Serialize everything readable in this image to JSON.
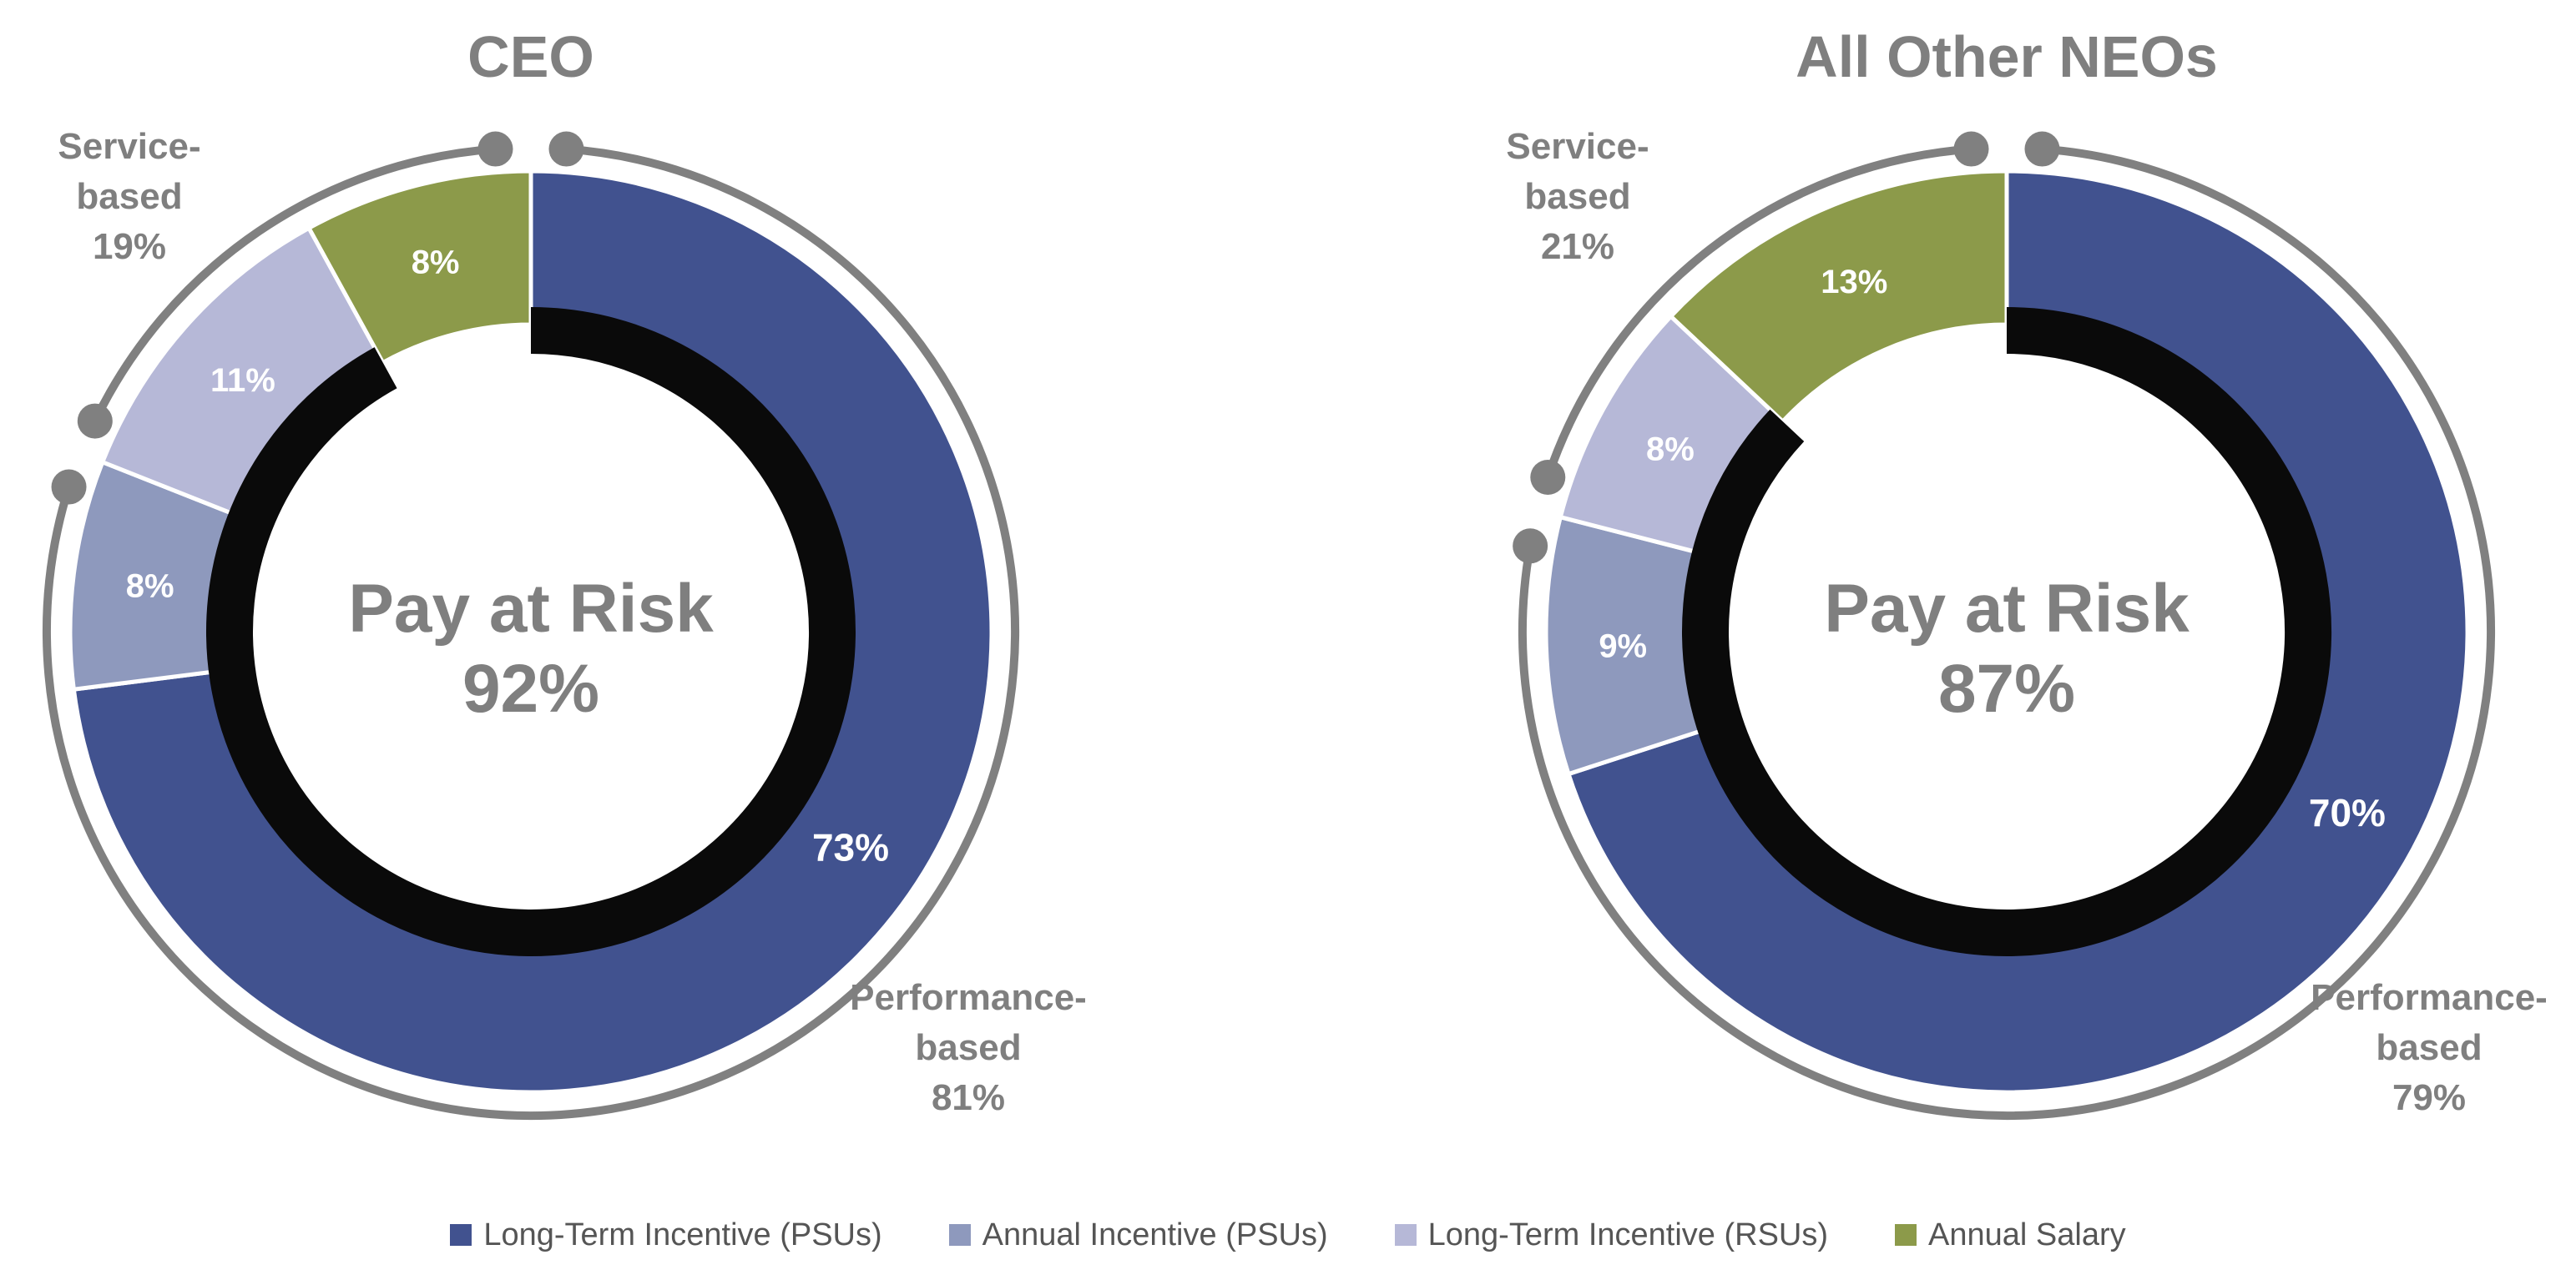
{
  "colors": {
    "ring": "#808080",
    "label_text": "#7f7f7f",
    "slice_text": "#ffffff",
    "inner_ring": "#0a0a0a"
  },
  "chart_data": [
    {
      "type": "donut",
      "title": "CEO",
      "center_label": "Pay at Risk",
      "center_value": "92%",
      "slices": [
        {
          "name": "Long-Term Incentive (PSUs)",
          "value": 73,
          "label": "73%",
          "color": "#41528f"
        },
        {
          "name": "Annual Incentive (PSUs)",
          "value": 8,
          "label": "8%",
          "color": "#8e99bd"
        },
        {
          "name": "Long-Term Incentive (RSUs)",
          "value": 11,
          "label": "11%",
          "color": "#b6b8d7"
        },
        {
          "name": "Annual Salary",
          "value": 8,
          "label": "8%",
          "color": "#8c9a4a"
        }
      ],
      "groups": [
        {
          "lines": [
            "Performance-",
            "based",
            "81%"
          ],
          "value": 81
        },
        {
          "lines": [
            "Service-",
            "based",
            "19%"
          ],
          "value": 19
        }
      ],
      "pay_at_risk": 92
    },
    {
      "type": "donut",
      "title": "All Other NEOs",
      "center_label": "Pay at Risk",
      "center_value": "87%",
      "slices": [
        {
          "name": "Long-Term Incentive (PSUs)",
          "value": 70,
          "label": "70%",
          "color": "#41528f"
        },
        {
          "name": "Annual Incentive (PSUs)",
          "value": 9,
          "label": "9%",
          "color": "#8e99bd"
        },
        {
          "name": "Long-Term Incentive (RSUs)",
          "value": 8,
          "label": "8%",
          "color": "#b6b8d7"
        },
        {
          "name": "Annual Salary",
          "value": 13,
          "label": "13%",
          "color": "#8c9a4a"
        }
      ],
      "groups": [
        {
          "lines": [
            "Performance-",
            "based",
            "79%"
          ],
          "value": 79
        },
        {
          "lines": [
            "Service-",
            "based",
            "21%"
          ],
          "value": 21
        }
      ],
      "pay_at_risk": 87
    }
  ],
  "legend": [
    {
      "label": "Long-Term Incentive (PSUs)",
      "color": "#41528f"
    },
    {
      "label": "Annual Incentive (PSUs)",
      "color": "#8e99bd"
    },
    {
      "label": "Long-Term Incentive (RSUs)",
      "color": "#b6b8d7"
    },
    {
      "label": "Annual Salary",
      "color": "#8c9a4a"
    }
  ]
}
